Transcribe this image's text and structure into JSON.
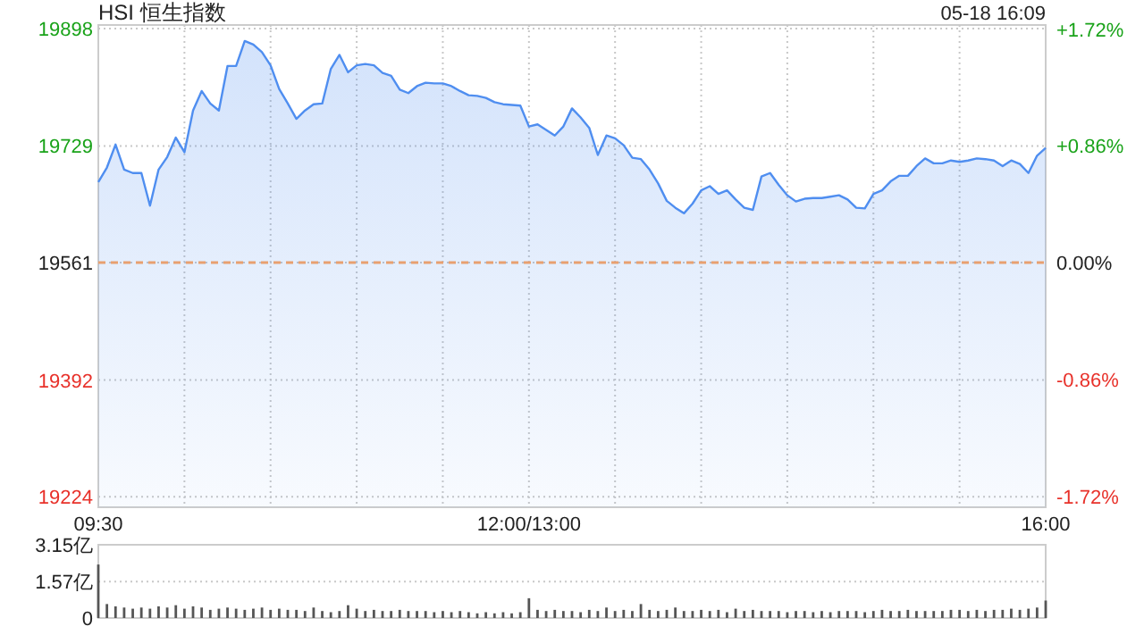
{
  "chart_data": [
    {
      "type": "area",
      "title": "HSI 恒生指数",
      "subtitle": "05-18 16:09",
      "categories": [
        "09:30",
        null,
        null,
        null,
        null,
        null,
        null,
        null,
        null,
        null,
        null,
        null,
        null,
        null,
        null,
        null,
        null,
        null,
        null,
        null,
        null,
        null,
        null,
        null,
        null,
        null,
        null,
        null,
        null,
        null,
        null,
        null,
        null,
        null,
        null,
        null,
        null,
        null,
        null,
        null,
        null,
        null,
        null,
        null,
        null,
        null,
        null,
        null,
        null,
        null,
        "12:00/13:00",
        null,
        null,
        null,
        null,
        null,
        null,
        null,
        null,
        null,
        null,
        null,
        null,
        null,
        null,
        null,
        null,
        null,
        null,
        null,
        null,
        null,
        null,
        null,
        null,
        null,
        null,
        null,
        null,
        null,
        null,
        null,
        null,
        null,
        null,
        null,
        null,
        null,
        null,
        null,
        null,
        null,
        null,
        null,
        null,
        null,
        null,
        null,
        null,
        null,
        null,
        null,
        null,
        null,
        null,
        null,
        null,
        null,
        null,
        null,
        "16:00"
      ],
      "ylim": [
        19209,
        19903
      ],
      "yticks": [
        19224,
        19392,
        19561,
        19729,
        19898
      ],
      "y2lim": [
        -1.8,
        1.75
      ],
      "y2ticks": [
        {
          "value": -1.72,
          "label": "-1.72%"
        },
        {
          "value": -0.86,
          "label": "-0.86%"
        },
        {
          "value": 0,
          "label": "0.00%"
        },
        {
          "value": 0.86,
          "label": "+0.86%"
        },
        {
          "value": 1.72,
          "label": "+1.72%"
        }
      ],
      "grid": true,
      "marker": "none",
      "line_style": "solid",
      "ref_lines": [
        {
          "axis": "y",
          "value": 19561,
          "color": "#e8a070",
          "line_style": "dashed"
        }
      ],
      "series": [
        {
          "color": "#4f8ef0",
          "values": [
            19677,
            19698,
            19731,
            19695,
            19690,
            19690,
            19643,
            19695,
            19713,
            19741,
            19720,
            19780,
            19808,
            19790,
            19780,
            19844,
            19844,
            19880,
            19875,
            19864,
            19845,
            19811,
            19790,
            19768,
            19780,
            19789,
            19790,
            19840,
            19860,
            19835,
            19845,
            19847,
            19845,
            19834,
            19830,
            19810,
            19805,
            19815,
            19820,
            19819,
            19819,
            19815,
            19808,
            19802,
            19801,
            19798,
            19792,
            19789,
            19788,
            19787,
            19757,
            19760,
            19752,
            19744,
            19757,
            19783,
            19770,
            19755,
            19716,
            19744,
            19740,
            19730,
            19712,
            19710,
            19695,
            19675,
            19650,
            19640,
            19632,
            19646,
            19665,
            19671,
            19660,
            19665,
            19652,
            19640,
            19637,
            19685,
            19690,
            19673,
            19658,
            19649,
            19653,
            19654,
            19654,
            19656,
            19658,
            19652,
            19640,
            19639,
            19660,
            19665,
            19678,
            19686,
            19686,
            19700,
            19711,
            19704,
            19704,
            19708,
            19706,
            19708,
            19711,
            19710,
            19708,
            19700,
            19708,
            19703,
            19690,
            19715,
            19726
          ]
        }
      ]
    },
    {
      "type": "bar",
      "tick_labels": "y",
      "grid": "y",
      "categories": [
        null,
        null,
        null,
        null,
        null,
        null,
        null,
        null,
        null,
        null,
        null,
        null,
        null,
        null,
        null,
        null,
        null,
        null,
        null,
        null,
        null,
        null,
        null,
        null,
        null,
        null,
        null,
        null,
        null,
        null,
        null,
        null,
        null,
        null,
        null,
        null,
        null,
        null,
        null,
        null,
        null,
        null,
        null,
        null,
        null,
        null,
        null,
        null,
        null,
        null,
        null,
        null,
        null,
        null,
        null,
        null,
        null,
        null,
        null,
        null,
        null,
        null,
        null,
        null,
        null,
        null,
        null,
        null,
        null,
        null,
        null,
        null,
        null,
        null,
        null,
        null,
        null,
        null,
        null,
        null,
        null,
        null,
        null,
        null,
        null,
        null,
        null,
        null,
        null,
        null,
        null,
        null,
        null,
        null,
        null,
        null,
        null,
        null,
        null,
        null,
        null,
        null,
        null,
        null,
        null,
        null,
        null,
        null,
        null,
        null,
        null
      ],
      "ylim": [
        0,
        3.15
      ],
      "yticks": [
        0,
        {
          "value": 1.57,
          "label": "1.57亿"
        },
        {
          "value": 3.15,
          "label": "3.15亿"
        }
      ],
      "series": [
        {
          "color": "#555555",
          "values": [
            2.3,
            0.6,
            0.5,
            0.45,
            0.4,
            0.45,
            0.4,
            0.5,
            0.45,
            0.55,
            0.4,
            0.5,
            0.45,
            0.35,
            0.4,
            0.45,
            0.4,
            0.35,
            0.4,
            0.45,
            0.35,
            0.4,
            0.35,
            0.35,
            0.3,
            0.45,
            0.3,
            0.25,
            0.3,
            0.55,
            0.4,
            0.3,
            0.35,
            0.3,
            0.3,
            0.35,
            0.3,
            0.3,
            0.3,
            0.25,
            0.3,
            0.25,
            0.3,
            0.25,
            0.2,
            0.25,
            0.2,
            0.25,
            0.2,
            0.25,
            0.85,
            0.35,
            0.3,
            0.35,
            0.3,
            0.3,
            0.25,
            0.35,
            0.3,
            0.45,
            0.3,
            0.35,
            0.3,
            0.6,
            0.35,
            0.3,
            0.35,
            0.45,
            0.3,
            0.3,
            0.35,
            0.3,
            0.35,
            0.25,
            0.4,
            0.3,
            0.35,
            0.3,
            0.3,
            0.3,
            0.25,
            0.3,
            0.3,
            0.25,
            0.3,
            0.25,
            0.3,
            0.3,
            0.3,
            0.25,
            0.3,
            0.35,
            0.3,
            0.3,
            0.35,
            0.3,
            0.3,
            0.3,
            0.3,
            0.35,
            0.35,
            0.3,
            0.35,
            0.3,
            0.35,
            0.35,
            0.4,
            0.35,
            0.4,
            0.45,
            0.75
          ]
        }
      ]
    }
  ]
}
